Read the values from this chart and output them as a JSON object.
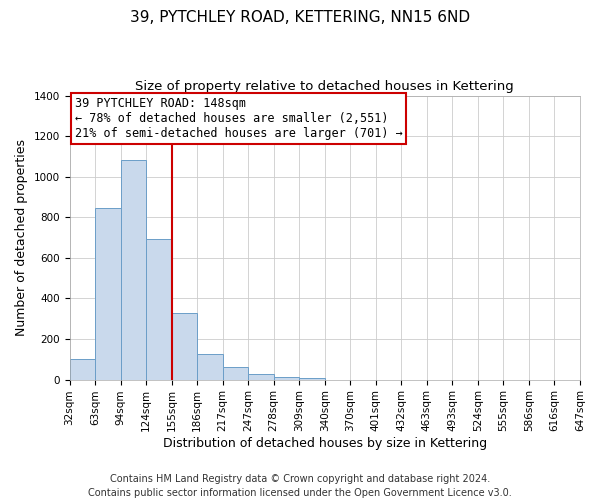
{
  "title": "39, PYTCHLEY ROAD, KETTERING, NN15 6ND",
  "subtitle": "Size of property relative to detached houses in Kettering",
  "xlabel": "Distribution of detached houses by size in Kettering",
  "ylabel": "Number of detached properties",
  "bar_values": [
    100,
    845,
    1080,
    695,
    330,
    125,
    60,
    30,
    15,
    10,
    0,
    0,
    0,
    0,
    0,
    0,
    0,
    0,
    0,
    0
  ],
  "bin_labels": [
    "32sqm",
    "63sqm",
    "94sqm",
    "124sqm",
    "155sqm",
    "186sqm",
    "217sqm",
    "247sqm",
    "278sqm",
    "309sqm",
    "340sqm",
    "370sqm",
    "401sqm",
    "432sqm",
    "463sqm",
    "493sqm",
    "524sqm",
    "555sqm",
    "586sqm",
    "616sqm",
    "647sqm"
  ],
  "bar_color": "#c9d9ec",
  "bar_edge_color": "#6b9ec8",
  "vline_color": "#cc0000",
  "vline_position": 4,
  "annotation_line1": "39 PYTCHLEY ROAD: 148sqm",
  "annotation_line2": "← 78% of detached houses are smaller (2,551)",
  "annotation_line3": "21% of semi-detached houses are larger (701) →",
  "annotation_box_color": "#cc0000",
  "ylim": [
    0,
    1400
  ],
  "yticks": [
    0,
    200,
    400,
    600,
    800,
    1000,
    1200,
    1400
  ],
  "footer_line1": "Contains HM Land Registry data © Crown copyright and database right 2024.",
  "footer_line2": "Contains public sector information licensed under the Open Government Licence v3.0.",
  "background_color": "#ffffff",
  "grid_color": "#cccccc",
  "title_fontsize": 11,
  "subtitle_fontsize": 9.5,
  "axis_label_fontsize": 9,
  "tick_fontsize": 7.5,
  "annotation_fontsize": 8.5,
  "footer_fontsize": 7
}
